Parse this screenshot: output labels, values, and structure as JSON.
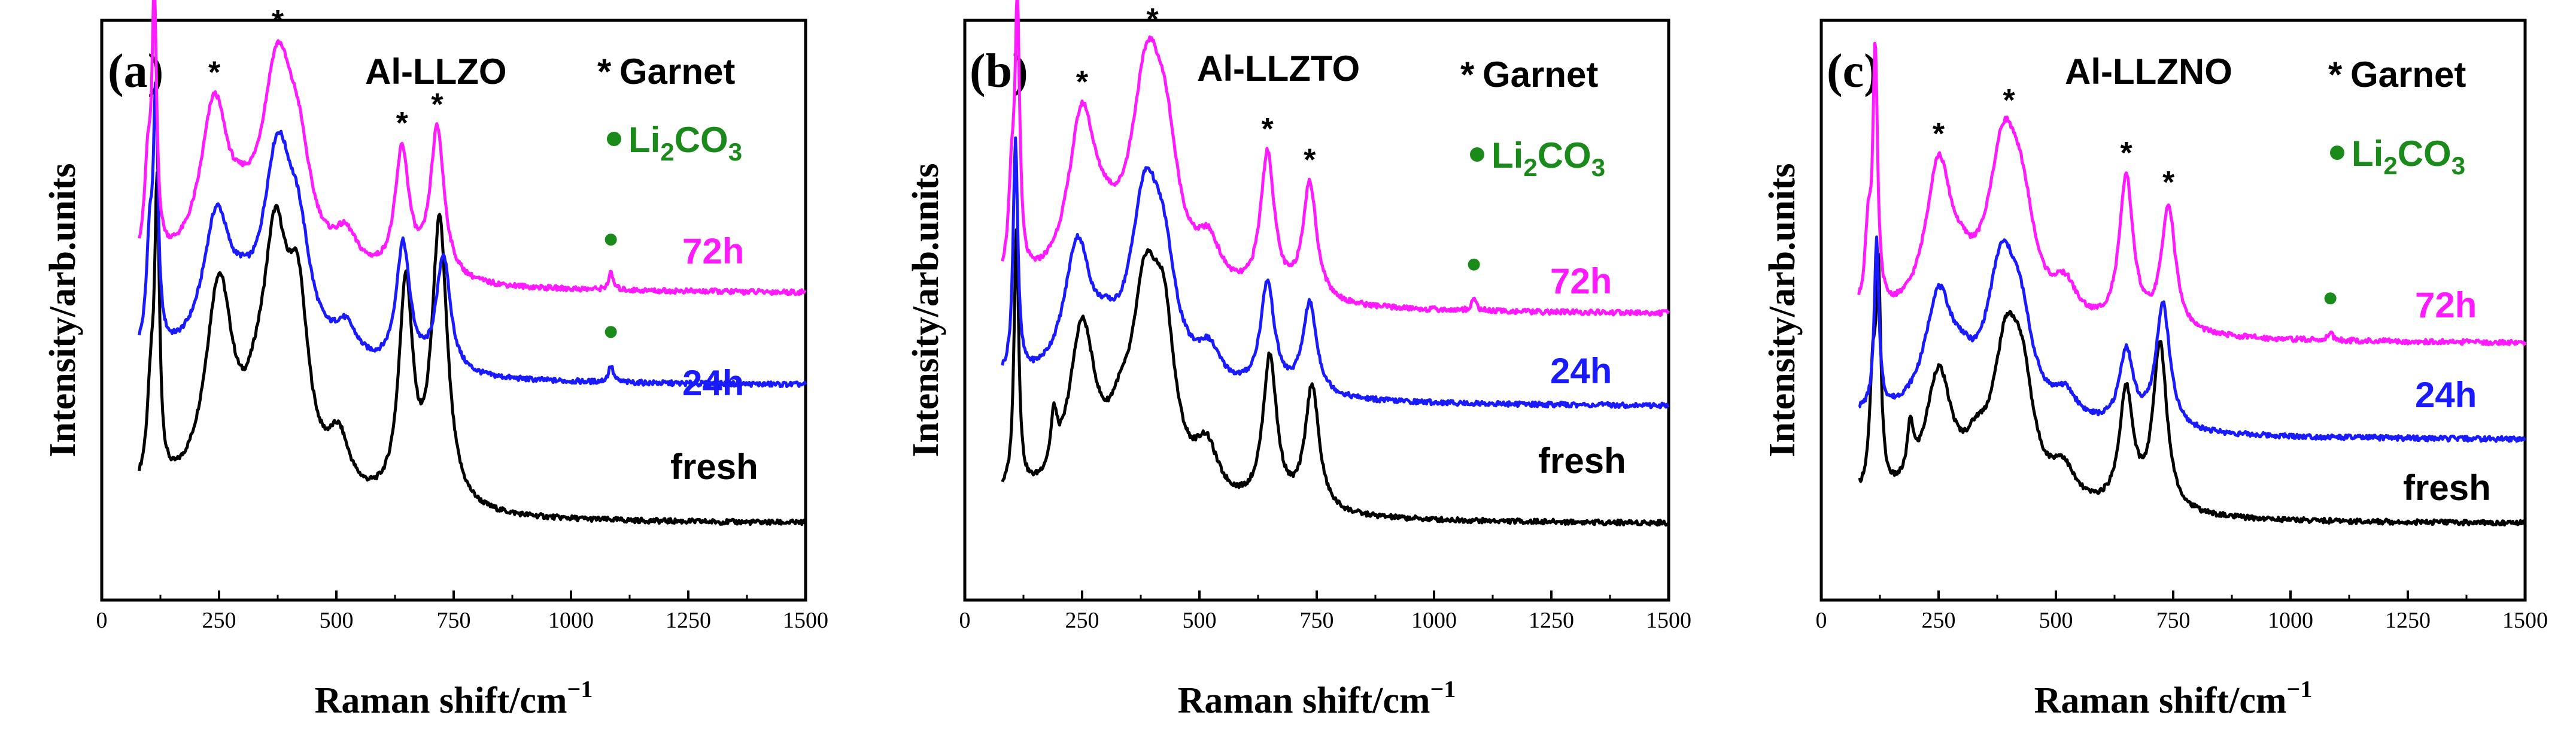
{
  "chart_data": [
    {
      "type": "line",
      "panel": "(a)",
      "sample": "Al-LLZO",
      "xlabel": "Raman shift/cm",
      "xlabel_sup": "−1",
      "ylabel": "Intensity/arb.units",
      "xlim": [
        0,
        1500
      ],
      "xticks": [
        0,
        250,
        500,
        750,
        1000,
        1250,
        1500
      ],
      "legend": {
        "garnet_symbol": "*",
        "garnet_label": "Garnet",
        "li2co3_prefix": "Li",
        "li2co3_sub1": "2",
        "li2co3_mid": "CO",
        "li2co3_sub2": "3"
      },
      "colors": {
        "fresh": "#000000",
        "24h": "#1a1aff",
        "72h": "#ff1aff",
        "li2co3": "#1a8a1a"
      },
      "series": [
        {
          "name": "fresh",
          "key": "fresh",
          "baseline": 0.0,
          "peaks": [
            [
              105,
              0.22,
              10
            ],
            [
              118,
              0.66,
              6
            ],
            [
              250,
              0.5,
              36
            ],
            [
              330,
              0.1,
              30
            ],
            [
              370,
              0.54,
              32
            ],
            [
              418,
              0.4,
              28
            ],
            [
              505,
              0.13,
              28
            ],
            [
              648,
              0.52,
              18
            ],
            [
              720,
              0.68,
              20
            ]
          ]
        },
        {
          "name": "24h",
          "key": "24h",
          "baseline": 0.33,
          "peaks": [
            [
              102,
              0.24,
              8
            ],
            [
              115,
              0.58,
              6
            ],
            [
              245,
              0.33,
              36
            ],
            [
              300,
              0.06,
              30
            ],
            [
              375,
              0.48,
              40
            ],
            [
              420,
              0.2,
              30
            ],
            [
              520,
              0.08,
              30
            ],
            [
              642,
              0.3,
              18
            ],
            [
              728,
              0.28,
              18
            ],
            [
              1085,
              0.04,
              6
            ]
          ]
        },
        {
          "name": "72h",
          "key": "72h",
          "baseline": 0.55,
          "peaks": [
            [
              98,
              0.2,
              8
            ],
            [
              112,
              0.6,
              6
            ],
            [
              240,
              0.38,
              36
            ],
            [
              300,
              0.05,
              30
            ],
            [
              375,
              0.48,
              42
            ],
            [
              420,
              0.18,
              30
            ],
            [
              520,
              0.08,
              30
            ],
            [
              640,
              0.3,
              18
            ],
            [
              715,
              0.36,
              18
            ],
            [
              1085,
              0.04,
              6
            ]
          ]
        }
      ],
      "garnet_stars": [
        {
          "x": 240,
          "series": "72h"
        },
        {
          "x": 375,
          "series": "72h"
        },
        {
          "x": 640,
          "series": "72h"
        },
        {
          "x": 715,
          "series": "72h"
        }
      ],
      "li2co3_markers": [
        {
          "x": 1085,
          "series": "72h"
        },
        {
          "x": 1085,
          "series": "24h"
        }
      ]
    },
    {
      "type": "line",
      "panel": "(b)",
      "sample": "Al-LLZTO",
      "xlabel": "Raman shift/cm",
      "xlabel_sup": "−1",
      "ylabel": "Intensity/arb.units",
      "xlim": [
        0,
        1500
      ],
      "xticks": [
        0,
        250,
        500,
        750,
        1000,
        1250,
        1500
      ],
      "legend": {
        "garnet_symbol": "*",
        "garnet_label": "Garnet",
        "li2co3_prefix": "Li",
        "li2co3_sub1": "2",
        "li2co3_mid": "CO",
        "li2co3_sub2": "3"
      },
      "colors": {
        "fresh": "#000000",
        "24h": "#1a1aff",
        "72h": "#ff1aff",
        "li2co3": "#1a8a1a"
      },
      "series": [
        {
          "name": "fresh",
          "key": "fresh",
          "baseline": 0.0,
          "peaks": [
            [
              110,
              0.62,
              6
            ],
            [
              190,
              0.12,
              8
            ],
            [
              250,
              0.4,
              34
            ],
            [
              330,
              0.1,
              30
            ],
            [
              385,
              0.46,
              36
            ],
            [
              425,
              0.32,
              28
            ],
            [
              515,
              0.12,
              30
            ],
            [
              650,
              0.36,
              18
            ],
            [
              740,
              0.3,
              18
            ]
          ]
        },
        {
          "name": "24h",
          "key": "24h",
          "baseline": 0.28,
          "peaks": [
            [
              108,
              0.56,
              6
            ],
            [
              240,
              0.32,
              34
            ],
            [
              300,
              0.06,
              30
            ],
            [
              385,
              0.44,
              40
            ],
            [
              425,
              0.2,
              30
            ],
            [
              520,
              0.08,
              30
            ],
            [
              645,
              0.26,
              18
            ],
            [
              735,
              0.22,
              18
            ]
          ]
        },
        {
          "name": "72h",
          "key": "72h",
          "baseline": 0.5,
          "peaks": [
            [
              100,
              0.2,
              8
            ],
            [
              112,
              0.62,
              6
            ],
            [
              250,
              0.4,
              36
            ],
            [
              300,
              0.05,
              30
            ],
            [
              390,
              0.52,
              44
            ],
            [
              430,
              0.2,
              30
            ],
            [
              520,
              0.1,
              30
            ],
            [
              645,
              0.34,
              18
            ],
            [
              735,
              0.28,
              18
            ],
            [
              1085,
              0.03,
              6
            ]
          ]
        }
      ],
      "garnet_stars": [
        {
          "x": 250,
          "series": "72h"
        },
        {
          "x": 400,
          "series": "72h"
        },
        {
          "x": 645,
          "series": "72h"
        },
        {
          "x": 735,
          "series": "72h"
        }
      ],
      "li2co3_markers": [
        {
          "x": 1085,
          "series": "72h"
        }
      ]
    },
    {
      "type": "line",
      "panel": "(c)",
      "sample": "Al-LLZNO",
      "xlabel": "Raman shift/cm",
      "xlabel_sup": "−1",
      "ylabel": "Intensity/arb.units",
      "xlim": [
        0,
        1500
      ],
      "xticks": [
        0,
        250,
        500,
        750,
        1000,
        1250,
        1500
      ],
      "legend": {
        "garnet_symbol": "*",
        "garnet_label": "Garnet",
        "li2co3_prefix": "Li",
        "li2co3_sub1": "2",
        "li2co3_mid": "CO",
        "li2co3_sub2": "3"
      },
      "colors": {
        "fresh": "#000000",
        "24h": "#1a1aff",
        "72h": "#ff1aff",
        "li2co3": "#1a8a1a"
      },
      "series": [
        {
          "name": "fresh",
          "key": "fresh",
          "baseline": 0.0,
          "peaks": [
            [
              110,
              0.26,
              8
            ],
            [
              122,
              0.48,
              6
            ],
            [
              190,
              0.12,
              8
            ],
            [
              250,
              0.3,
              34
            ],
            [
              330,
              0.08,
              30
            ],
            [
              395,
              0.36,
              36
            ],
            [
              430,
              0.2,
              28
            ],
            [
              515,
              0.08,
              30
            ],
            [
              650,
              0.28,
              18
            ],
            [
              722,
              0.4,
              18
            ]
          ]
        },
        {
          "name": "24h",
          "key": "24h",
          "baseline": 0.2,
          "peaks": [
            [
              118,
              0.4,
              6
            ],
            [
              250,
              0.28,
              36
            ],
            [
              300,
              0.06,
              30
            ],
            [
              385,
              0.36,
              40
            ],
            [
              425,
              0.16,
              30
            ],
            [
              520,
              0.06,
              30
            ],
            [
              650,
              0.18,
              18
            ],
            [
              728,
              0.3,
              18
            ]
          ]
        },
        {
          "name": "72h",
          "key": "72h",
          "baseline": 0.43,
          "peaks": [
            [
              100,
              0.18,
              8
            ],
            [
              115,
              0.6,
              6
            ],
            [
              250,
              0.36,
              34
            ],
            [
              300,
              0.05,
              30
            ],
            [
              390,
              0.42,
              42
            ],
            [
              430,
              0.16,
              30
            ],
            [
              520,
              0.08,
              30
            ],
            [
              650,
              0.36,
              18
            ],
            [
              740,
              0.3,
              18
            ],
            [
              1085,
              0.02,
              6
            ]
          ]
        }
      ],
      "garnet_stars": [
        {
          "x": 250,
          "series": "72h"
        },
        {
          "x": 400,
          "series": "72h"
        },
        {
          "x": 650,
          "series": "72h"
        },
        {
          "x": 740,
          "series": "72h"
        }
      ],
      "li2co3_markers": [
        {
          "x": 1085,
          "series": "72h"
        }
      ]
    }
  ]
}
